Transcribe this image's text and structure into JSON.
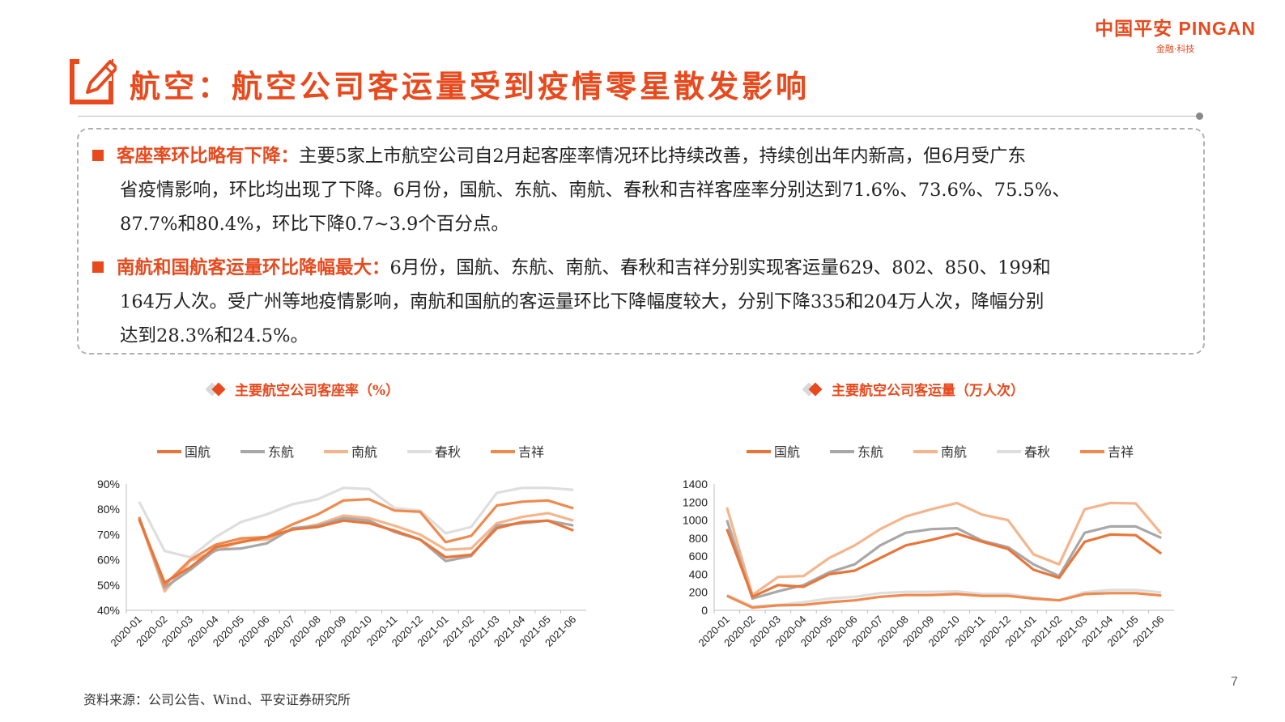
{
  "header": {
    "logo_main": "中国平安 PINGAN",
    "logo_sub": "金融·科技",
    "title": "航空：航空公司客运量受到疫情零星散发影响"
  },
  "paragraphs": [
    {
      "heading": "客座率环比略有下降：",
      "line1": "主要5家上市航空公司自2月起客座率情况环比持续改善，持续创出年内新高，但6月受广东",
      "line2": "省疫情影响，环比均出现了下降。6月份，国航、东航、南航、春秋和吉祥客座率分别达到71.6%、73.6%、75.5%、",
      "line3": "87.7%和80.4%，环比下降0.7~3.9个百分点。"
    },
    {
      "heading": "南航和国航客运量环比降幅最大：",
      "line1": "6月份，国航、东航、南航、春秋和吉祥分别实现客运量629、802、850、199和",
      "line2": "164万人次。受广州等地疫情影响，南航和国航的客运量环比下降幅度较大，分别下降335和204万人次，降幅分别",
      "line3": "达到28.3%和24.5%。"
    }
  ],
  "chart_titles": [
    "主要航空公司客座率（%）",
    "主要航空公司客运量（万人次）"
  ],
  "source": "资料来源：公司公告、Wind、平安证券研究所",
  "page_number": "7",
  "colors": {
    "accent": "#e8491d",
    "国航": "#e8763a",
    "东航": "#a8a8a8",
    "南航": "#f5b58c",
    "春秋": "#dedede",
    "吉祥": "#ef8a4e"
  },
  "chart_data": [
    {
      "type": "line",
      "title": "主要航空公司客座率（%）",
      "categories": [
        "2020-01",
        "2020-02",
        "2020-03",
        "2020-04",
        "2020-05",
        "2020-06",
        "2020-07",
        "2020-08",
        "2020-09",
        "2020-10",
        "2020-11",
        "2020-12",
        "2021-01",
        "2021-02",
        "2021-03",
        "2021-04",
        "2021-05",
        "2021-06"
      ],
      "ylim": [
        40,
        90
      ],
      "yticks": [
        40,
        50,
        60,
        70,
        80,
        90
      ],
      "ytick_labels": [
        "40%",
        "50%",
        "60%",
        "70%",
        "80%",
        "90%"
      ],
      "legend": "top",
      "series": [
        {
          "name": "国航",
          "values": [
            76,
            51,
            57,
            65,
            67,
            69,
            72,
            73,
            75.5,
            74.5,
            71.5,
            68,
            61,
            62,
            72.5,
            75,
            75.5,
            71.6
          ]
        },
        {
          "name": "东航",
          "values": [
            77,
            49,
            56,
            64,
            64.5,
            66.5,
            72.5,
            73.5,
            76.5,
            75.5,
            71,
            68,
            59.5,
            61.5,
            73.5,
            74.5,
            75.5,
            73.6
          ]
        },
        {
          "name": "南航",
          "values": [
            76.5,
            47.5,
            59.5,
            63.5,
            67.5,
            68,
            72,
            74,
            77.5,
            76.5,
            73.5,
            70,
            64,
            64.5,
            74.5,
            77,
            78.5,
            75.5
          ]
        },
        {
          "name": "春秋",
          "values": [
            83,
            63.5,
            61,
            69,
            75,
            78,
            82,
            84,
            88.5,
            88,
            80.5,
            79.5,
            70.5,
            73,
            86.5,
            88.5,
            88.5,
            87.7
          ]
        },
        {
          "name": "吉祥",
          "values": [
            76.5,
            50,
            60,
            66,
            68.5,
            69,
            74,
            78,
            83.5,
            84,
            79.5,
            79,
            67,
            69.5,
            81.5,
            83,
            83.5,
            80.4
          ]
        }
      ]
    },
    {
      "type": "line",
      "title": "主要航空公司客运量（万人次）",
      "categories": [
        "2020-01",
        "2020-02",
        "2020-03",
        "2020-04",
        "2020-05",
        "2020-06",
        "2020-07",
        "2020-08",
        "2020-09",
        "2020-10",
        "2020-11",
        "2020-12",
        "2021-01",
        "2021-02",
        "2021-03",
        "2021-04",
        "2021-05",
        "2021-06"
      ],
      "ylim": [
        0,
        1400
      ],
      "yticks": [
        0,
        200,
        400,
        600,
        800,
        1000,
        1200,
        1400
      ],
      "ytick_labels": [
        "0",
        "200",
        "400",
        "600",
        "800",
        "1000",
        "1200",
        "1400"
      ],
      "legend": "top",
      "series": [
        {
          "name": "国航",
          "values": [
            900,
            150,
            280,
            260,
            400,
            440,
            580,
            720,
            780,
            850,
            760,
            680,
            450,
            360,
            760,
            840,
            833,
            629
          ]
        },
        {
          "name": "东航",
          "values": [
            1000,
            130,
            210,
            280,
            420,
            510,
            720,
            860,
            900,
            910,
            770,
            700,
            510,
            380,
            860,
            930,
            930,
            802
          ]
        },
        {
          "name": "南航",
          "values": [
            1140,
            170,
            370,
            380,
            580,
            720,
            900,
            1040,
            1120,
            1190,
            1060,
            1000,
            620,
            510,
            1120,
            1190,
            1185,
            850
          ]
        },
        {
          "name": "春秋",
          "values": [
            170,
            45,
            60,
            90,
            130,
            150,
            190,
            205,
            205,
            210,
            180,
            180,
            140,
            110,
            200,
            225,
            225,
            199
          ]
        },
        {
          "name": "吉祥",
          "values": [
            160,
            30,
            55,
            60,
            90,
            110,
            150,
            170,
            170,
            180,
            160,
            160,
            130,
            110,
            180,
            190,
            190,
            164
          ]
        }
      ]
    }
  ]
}
